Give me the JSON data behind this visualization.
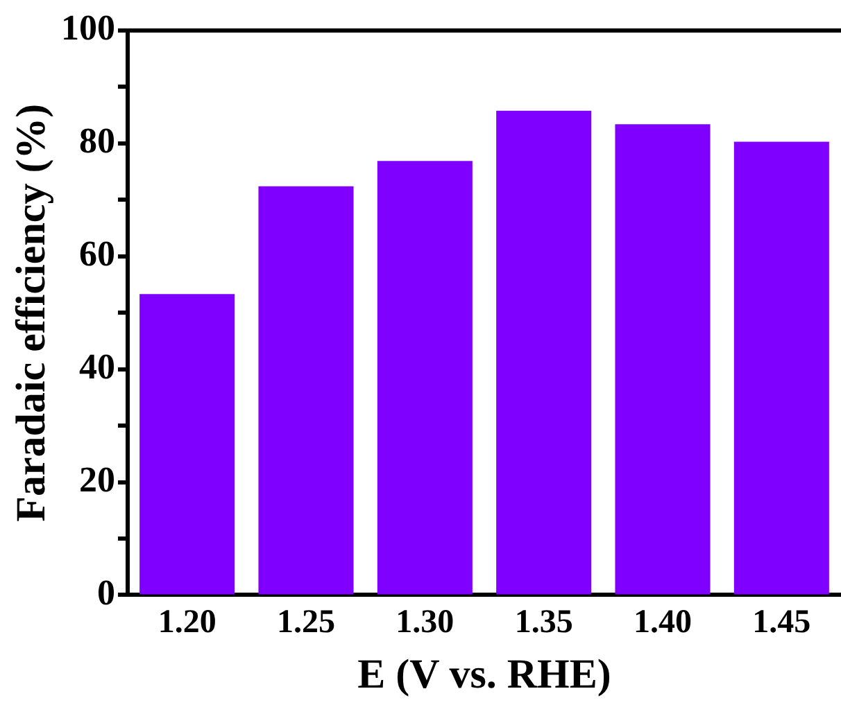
{
  "chart_data": {
    "type": "bar",
    "xlabel": "E (V vs. RHE)",
    "ylabel": "Faradaic efficiency (%)",
    "categories": [
      "1.20",
      "1.25",
      "1.30",
      "1.35",
      "1.40",
      "1.45"
    ],
    "values": [
      53.3,
      72.4,
      76.9,
      85.8,
      83.4,
      80.3
    ],
    "color": "#8000ff",
    "ylim": [
      0,
      100
    ],
    "yticks": [
      0,
      {
        "value": 10,
        "label": null
      },
      20,
      {
        "value": 30,
        "label": null
      },
      40,
      {
        "value": 50,
        "label": null
      },
      60,
      {
        "value": 70,
        "label": null
      },
      80,
      {
        "value": 90,
        "label": null
      },
      100
    ],
    "grid": false,
    "legend": false
  }
}
